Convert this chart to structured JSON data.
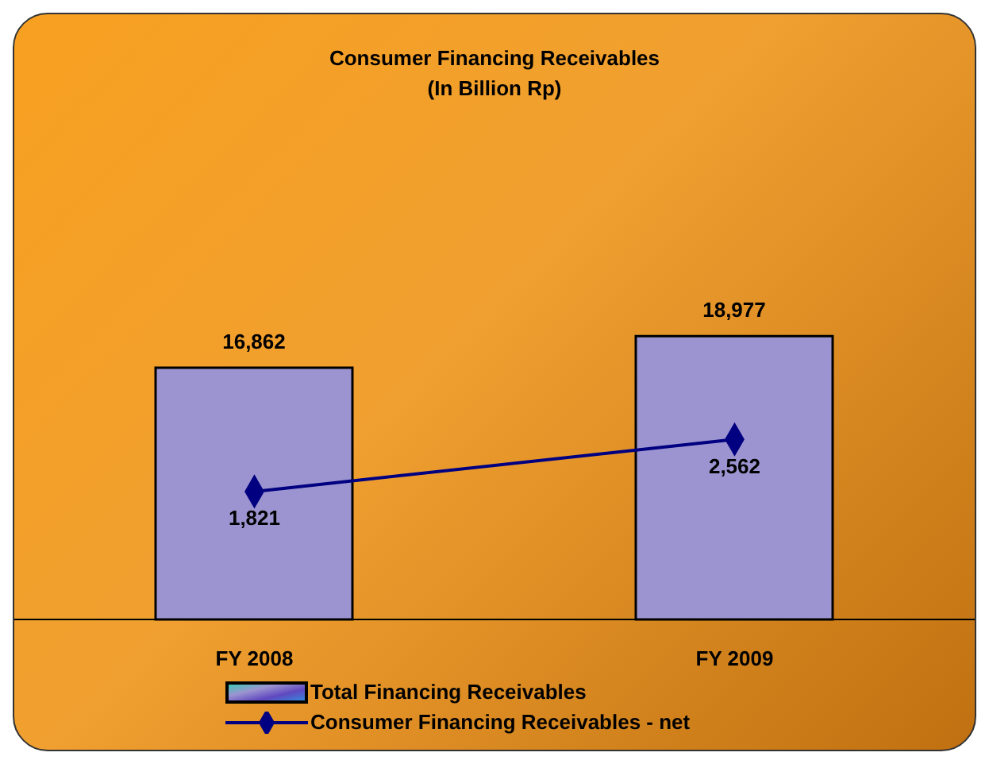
{
  "chart_data": {
    "type": "bar",
    "title": "Consumer Financing Receivables",
    "subtitle": "(In Billion Rp)",
    "categories": [
      "FY 2008",
      "FY 2009"
    ],
    "series": [
      {
        "name": "Total Financing Receivables",
        "color": "#9c94d0",
        "values": [
          16862,
          18977
        ],
        "value_labels": [
          "16,862",
          "18,977"
        ]
      },
      {
        "name": "Consumer Financing Receivables - net",
        "type": "line",
        "axis": "y2",
        "color": "#000080",
        "values": [
          1821,
          2562
        ],
        "value_labels": [
          "1,821",
          "2,562"
        ]
      }
    ],
    "marker": "diamond",
    "legend": "bottom"
  }
}
